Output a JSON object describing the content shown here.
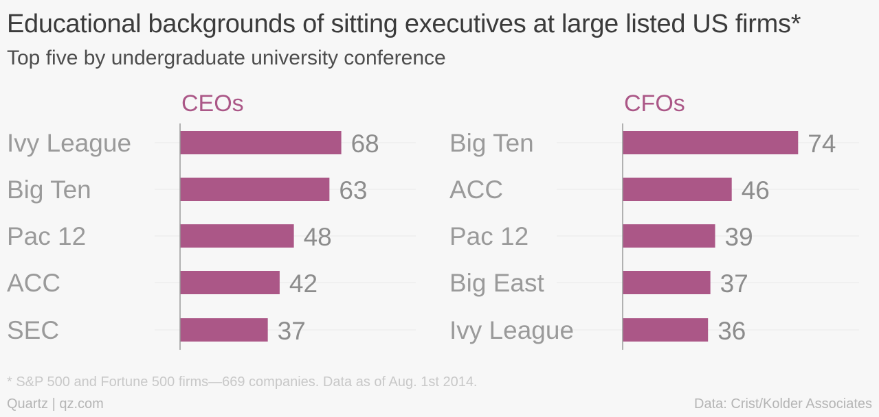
{
  "title": "Educational backgrounds of sitting executives at large listed US firms*",
  "subtitle": "Top five by undergraduate university conference",
  "footnote": "* S&P 500 and Fortune 500 firms—669 companies. Data as of Aug. 1st 2014.",
  "credit": "Quartz | qz.com",
  "source": "Data: Crist/Kolder Associates",
  "colors": {
    "bar": "#ab5787",
    "panel_title": "#ab5787",
    "category_label": "#9a9a9a",
    "value_label": "#8c8c8c"
  },
  "chart_data": [
    {
      "type": "bar",
      "orientation": "horizontal",
      "title": "CEOs",
      "categories": [
        "Ivy League",
        "Big Ten",
        "Pac 12",
        "ACC",
        "SEC"
      ],
      "values": [
        68,
        63,
        48,
        42,
        37
      ],
      "xlim": [
        0,
        90
      ],
      "grid": false
    },
    {
      "type": "bar",
      "orientation": "horizontal",
      "title": "CFOs",
      "categories": [
        "Big Ten",
        "ACC",
        "Pac 12",
        "Big East",
        "Ivy League"
      ],
      "values": [
        74,
        46,
        39,
        37,
        36
      ],
      "xlim": [
        0,
        90
      ],
      "grid": false
    }
  ]
}
